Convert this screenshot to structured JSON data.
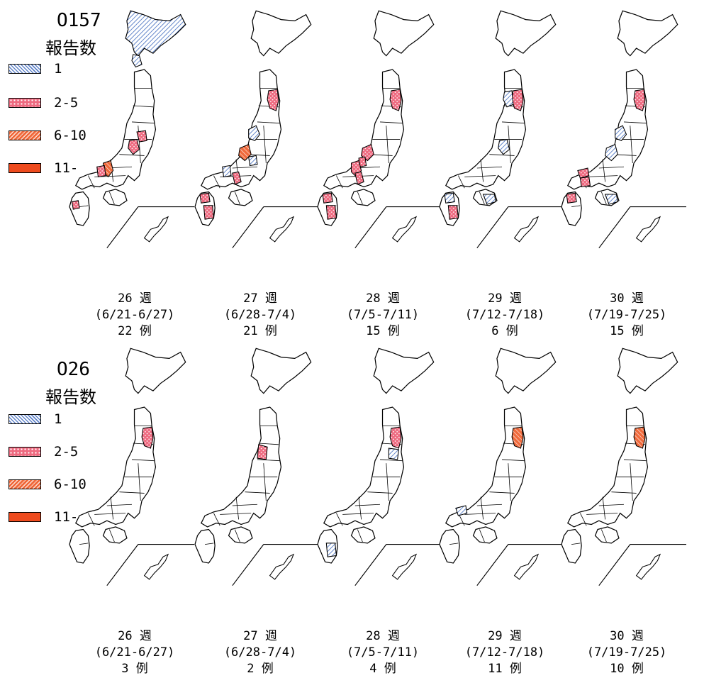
{
  "legend": {
    "title": "報告数",
    "items": [
      {
        "label": "1",
        "fill": "pattern-blue"
      },
      {
        "label": "2-5",
        "fill": "pattern-pink"
      },
      {
        "label": "6-10",
        "fill": "pattern-orange"
      },
      {
        "label": "11-",
        "fill": "solid-orange"
      }
    ]
  },
  "colors": {
    "blue": "#a9c4ee",
    "pink": "#ee6a80",
    "orange": "#f06a3c",
    "solid": "#ee4b1e",
    "outline": "#000000"
  },
  "sections": [
    {
      "title": "O157",
      "weeks": [
        {
          "week": "26 週",
          "range": "(6/21-6/27)",
          "count": "22 例",
          "regions": [
            {
              "id": "hokkaido",
              "level": 1
            },
            {
              "id": "aomori_tip",
              "level": 1
            },
            {
              "id": "nagano",
              "level": 2
            },
            {
              "id": "gunma",
              "level": 2
            },
            {
              "id": "kyoto",
              "level": 3
            },
            {
              "id": "hyogo",
              "level": 2
            },
            {
              "id": "saga",
              "level": 2
            }
          ]
        },
        {
          "week": "27 週",
          "range": "(6/28-7/4)",
          "count": "21 例",
          "regions": [
            {
              "id": "iwate",
              "level": 2
            },
            {
              "id": "niigata",
              "level": 1
            },
            {
              "id": "gifu",
              "level": 3
            },
            {
              "id": "aichi",
              "level": 1
            },
            {
              "id": "hyogo",
              "level": 1
            },
            {
              "id": "osaka",
              "level": 2
            },
            {
              "id": "fukuoka",
              "level": 2
            },
            {
              "id": "kumamoto",
              "level": 2
            }
          ]
        },
        {
          "week": "28 週",
          "range": "(7/5-7/11)",
          "count": "15 例",
          "regions": [
            {
              "id": "iwate",
              "level": 2
            },
            {
              "id": "gifu",
              "level": 2
            },
            {
              "id": "shiga",
              "level": 2
            },
            {
              "id": "kyoto",
              "level": 2
            },
            {
              "id": "osaka",
              "level": 2
            },
            {
              "id": "fukuoka",
              "level": 2
            },
            {
              "id": "kumamoto",
              "level": 2
            }
          ]
        },
        {
          "week": "29 週",
          "range": "(7/12-7/18)",
          "count": "6 例",
          "regions": [
            {
              "id": "iwate",
              "level": 2
            },
            {
              "id": "akita",
              "level": 1
            },
            {
              "id": "nagano",
              "level": 1
            },
            {
              "id": "shikoku_s",
              "level": 1
            },
            {
              "id": "fukuoka",
              "level": 1
            },
            {
              "id": "kumamoto",
              "level": 2
            }
          ]
        },
        {
          "week": "30 週",
          "range": "(7/19-7/25)",
          "count": "15 例",
          "regions": [
            {
              "id": "iwate",
              "level": 2
            },
            {
              "id": "niigata",
              "level": 1
            },
            {
              "id": "gifu",
              "level": 1
            },
            {
              "id": "shimane",
              "level": 2
            },
            {
              "id": "hiroshima",
              "level": 2
            },
            {
              "id": "shikoku_s",
              "level": 1
            },
            {
              "id": "fukuoka",
              "level": 2
            }
          ]
        }
      ]
    },
    {
      "title": "O26",
      "weeks": [
        {
          "week": "26 週",
          "range": "(6/21-6/27)",
          "count": "3 例",
          "regions": [
            {
              "id": "iwate",
              "level": 2
            }
          ]
        },
        {
          "week": "27 週",
          "range": "(6/28-7/4)",
          "count": "2 例",
          "regions": [
            {
              "id": "yamagata",
              "level": 2
            }
          ]
        },
        {
          "week": "28 週",
          "range": "(7/5-7/11)",
          "count": "4 例",
          "regions": [
            {
              "id": "iwate",
              "level": 2
            },
            {
              "id": "miyagi",
              "level": 1
            },
            {
              "id": "kumamoto",
              "level": 1
            }
          ]
        },
        {
          "week": "29 週",
          "range": "(7/12-7/18)",
          "count": "11 例",
          "regions": [
            {
              "id": "iwate",
              "level": 3
            },
            {
              "id": "shimane",
              "level": 1
            }
          ]
        },
        {
          "week": "30 週",
          "range": "(7/19-7/25)",
          "count": "10 例",
          "regions": [
            {
              "id": "iwate",
              "level": 3
            }
          ]
        }
      ]
    }
  ]
}
